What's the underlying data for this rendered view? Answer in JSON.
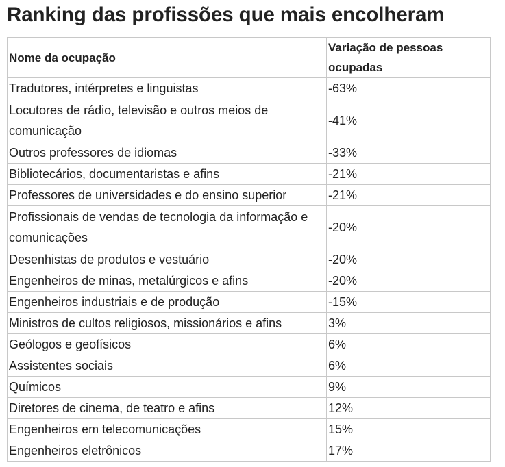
{
  "title": "Ranking das profissões que mais encolheram",
  "table": {
    "headers": {
      "occupation": "Nome da ocupação",
      "variation": "Variação de pessoas ocupadas"
    },
    "rows": [
      {
        "occupation": "Tradutores, intérpretes e linguistas",
        "variation": "-63%"
      },
      {
        "occupation": "Locutores de rádio, televisão e outros meios de comunicação",
        "variation": "-41%"
      },
      {
        "occupation": "Outros professores de idiomas",
        "variation": "-33%"
      },
      {
        "occupation": "Bibliotecários, documentaristas e afins",
        "variation": "-21%"
      },
      {
        "occupation": "Professores de universidades e do ensino superior",
        "variation": "-21%"
      },
      {
        "occupation": "Profissionais de vendas de tecnologia da informação e comunicações",
        "variation": "-20%"
      },
      {
        "occupation": "Desenhistas de produtos e vestuário",
        "variation": "-20%"
      },
      {
        "occupation": "Engenheiros de minas, metalúrgicos e afins",
        "variation": "-20%"
      },
      {
        "occupation": "Engenheiros industriais e de produção",
        "variation": "-15%"
      },
      {
        "occupation": "Ministros de cultos religiosos, missionários e afins",
        "variation": "3%"
      },
      {
        "occupation": "Geólogos e geofísicos",
        "variation": "6%"
      },
      {
        "occupation": "Assistentes sociais",
        "variation": "6%"
      },
      {
        "occupation": "Químicos",
        "variation": "9%"
      },
      {
        "occupation": "Diretores de cinema, de teatro e afins",
        "variation": "12%"
      },
      {
        "occupation": "Engenheiros em telecomunicações",
        "variation": "15%"
      },
      {
        "occupation": "Engenheiros eletrônicos",
        "variation": "17%"
      }
    ]
  }
}
